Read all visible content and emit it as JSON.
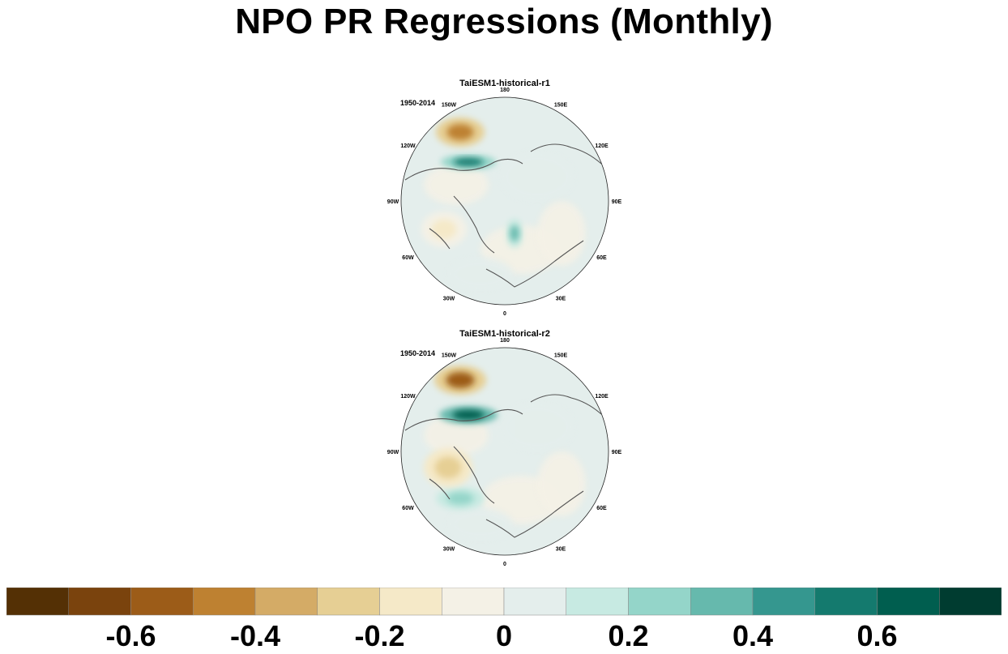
{
  "title": "NPO PR Regressions (Monthly)",
  "chart_data": [
    {
      "type": "heatmap",
      "projection": "north polar stereographic",
      "title": "TaiESM1-historical-r1",
      "period": "1950-2014",
      "longitude_labels": [
        "180",
        "150E",
        "120E",
        "90E",
        "60E",
        "30E",
        "0",
        "30W",
        "60W",
        "90W",
        "120W",
        "150W"
      ],
      "features": [
        {
          "name": "negative maximum over North Pacific / Aleutians",
          "value": -0.5
        },
        {
          "name": "positive band south of Alaska",
          "value": 0.55
        },
        {
          "name": "weak positive over Greenland Sea",
          "value": 0.3
        },
        {
          "name": "weak negative over western Atlantic / Canada",
          "value": -0.2
        }
      ]
    },
    {
      "type": "heatmap",
      "projection": "north polar stereographic",
      "title": "TaiESM1-historical-r2",
      "period": "1950-2014",
      "longitude_labels": [
        "180",
        "150E",
        "120E",
        "90E",
        "60E",
        "30E",
        "0",
        "30W",
        "60W",
        "90W",
        "120W",
        "150W"
      ],
      "features": [
        {
          "name": "negative maximum over North Pacific / Aleutians",
          "value": -0.55
        },
        {
          "name": "positive band south of Alaska",
          "value": 0.6
        },
        {
          "name": "positive over subtropical Atlantic",
          "value": 0.25
        },
        {
          "name": "weak negative over eastern North America",
          "value": -0.25
        }
      ]
    }
  ],
  "colorbar": {
    "levels": [
      -0.7,
      -0.6,
      -0.5,
      -0.4,
      -0.3,
      -0.2,
      -0.1,
      0,
      0.1,
      0.2,
      0.3,
      0.4,
      0.5,
      0.6,
      0.7
    ],
    "colors": [
      "#543005",
      "#7a430d",
      "#9c5c18",
      "#be8131",
      "#d4ab66",
      "#e6cf94",
      "#f5e9c8",
      "#f4f1e6",
      "#e4eeec",
      "#c7eae2",
      "#94d5c9",
      "#66b9ad",
      "#35978f",
      "#147a6e",
      "#005e4f",
      "#003c30"
    ],
    "labels": [
      "-0.6",
      "-0.4",
      "-0.2",
      "0",
      "0.2",
      "0.4",
      "0.6"
    ]
  }
}
